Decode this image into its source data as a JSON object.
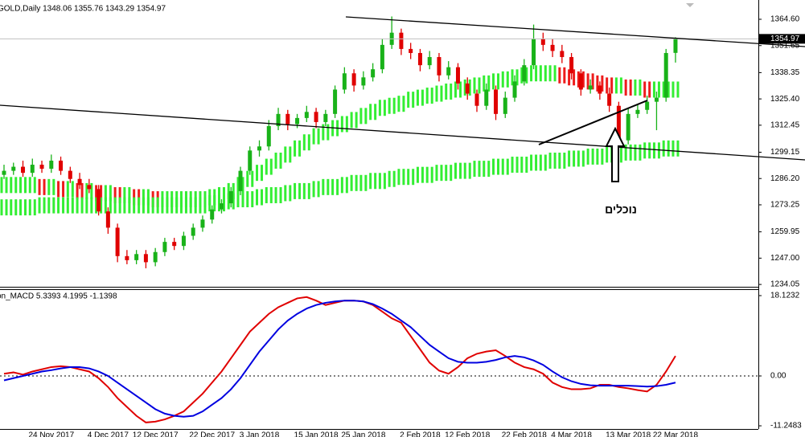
{
  "chart_data": [
    {
      "type": "candlestick",
      "title": "GOLD,Daily  1348.06 1355.76 1343.29 1354.97",
      "annotation": "נוכלים",
      "up_color": "#19b219",
      "down_color": "#e00000",
      "ylim": [
        1232.9,
        1373.7
      ],
      "yticks": [
        {
          "value": 1364.6,
          "label": "1364.60"
        },
        1351.65,
        1338.35,
        {
          "value": 1325.4,
          "label": "1325.40"
        },
        1312.45,
        1299.15,
        {
          "value": 1286.2,
          "label": "1286.20"
        },
        1273.25,
        1259.95,
        {
          "value": 1247,
          "label": "1247.00"
        },
        1234.05
      ],
      "categories": [
        null,
        null,
        null,
        null,
        null,
        "24 Nov 2017",
        null,
        null,
        null,
        null,
        null,
        "4 Dec 2017",
        null,
        null,
        null,
        null,
        "12 Dec 2017",
        null,
        null,
        null,
        null,
        null,
        "22 Dec 2017",
        null,
        null,
        null,
        null,
        "3 Jan 2018",
        null,
        null,
        null,
        null,
        null,
        "15 Jan 2018",
        null,
        null,
        null,
        null,
        "25 Jan 2018",
        null,
        null,
        null,
        null,
        null,
        "2 Feb 2018",
        null,
        null,
        null,
        null,
        "12 Feb 2018",
        null,
        null,
        null,
        null,
        null,
        "22 Feb 2018",
        null,
        null,
        null,
        null,
        "4 Mar 2018",
        null,
        null,
        null,
        null,
        null,
        "13 Mar 2018",
        null,
        null,
        null,
        null,
        "22 Mar 2018"
      ],
      "candles": [
        [
          1288,
          1293,
          1286,
          1290
        ],
        [
          1290,
          1294,
          1288,
          1292
        ],
        [
          1292,
          1295,
          1287,
          1289
        ],
        [
          1289,
          1296,
          1287,
          1293
        ],
        [
          1293,
          1295,
          1289,
          1291
        ],
        [
          1291,
          1298,
          1289,
          1295
        ],
        [
          1295,
          1297,
          1288,
          1290
        ],
        [
          1290,
          1292,
          1284,
          1286
        ],
        [
          1286,
          1289,
          1281,
          1283
        ],
        [
          1283,
          1286,
          1279,
          1281
        ],
        [
          1281,
          1283,
          1268,
          1270
        ],
        [
          1270,
          1272,
          1259,
          1262
        ],
        [
          1262,
          1264,
          1245,
          1248
        ],
        [
          1248,
          1251,
          1244,
          1246
        ],
        [
          1246,
          1251,
          1244,
          1249
        ],
        [
          1249,
          1251,
          1242,
          1245
        ],
        [
          1245,
          1252,
          1243,
          1250
        ],
        [
          1250,
          1257,
          1248,
          1255
        ],
        [
          1255,
          1257,
          1251,
          1253
        ],
        [
          1253,
          1260,
          1251,
          1258
        ],
        [
          1258,
          1264,
          1256,
          1262
        ],
        [
          1262,
          1268,
          1260,
          1266
        ],
        [
          1266,
          1273,
          1264,
          1271
        ],
        [
          1271,
          1276,
          1269,
          1274
        ],
        [
          1274,
          1282,
          1272,
          1280
        ],
        [
          1280,
          1292,
          1278,
          1290
        ],
        [
          1290,
          1302,
          1288,
          1300
        ],
        [
          1300,
          1305,
          1297,
          1302
        ],
        [
          1302,
          1315,
          1300,
          1312
        ],
        [
          1312,
          1321,
          1310,
          1318
        ],
        [
          1318,
          1320,
          1310,
          1313
        ],
        [
          1313,
          1318,
          1311,
          1316
        ],
        [
          1316,
          1322,
          1314,
          1319
        ],
        [
          1319,
          1321,
          1311,
          1314
        ],
        [
          1314,
          1320,
          1312,
          1318
        ],
        [
          1318,
          1332,
          1316,
          1330
        ],
        [
          1330,
          1341,
          1328,
          1338
        ],
        [
          1338,
          1340,
          1329,
          1332
        ],
        [
          1332,
          1339,
          1330,
          1336
        ],
        [
          1336,
          1343,
          1334,
          1340
        ],
        [
          1340,
          1355,
          1338,
          1352
        ],
        [
          1352,
          1366,
          1350,
          1358
        ],
        [
          1358,
          1360,
          1347,
          1350
        ],
        [
          1350,
          1353,
          1345,
          1348
        ],
        [
          1348,
          1350,
          1339,
          1342
        ],
        [
          1342,
          1349,
          1340,
          1346
        ],
        [
          1346,
          1348,
          1334,
          1337
        ],
        [
          1337,
          1344,
          1335,
          1341
        ],
        [
          1341,
          1343,
          1330,
          1333
        ],
        [
          1333,
          1336,
          1325,
          1328
        ],
        [
          1328,
          1330,
          1319,
          1322
        ],
        [
          1322,
          1333,
          1320,
          1330
        ],
        [
          1330,
          1332,
          1315,
          1318
        ],
        [
          1318,
          1329,
          1316,
          1326
        ],
        [
          1326,
          1337,
          1324,
          1334
        ],
        [
          1334,
          1345,
          1332,
          1342
        ],
        [
          1342,
          1362,
          1340,
          1355
        ],
        [
          1355,
          1358,
          1349,
          1352
        ],
        [
          1352,
          1355,
          1346,
          1349
        ],
        [
          1349,
          1352,
          1343,
          1346
        ],
        [
          1346,
          1348,
          1335,
          1338
        ],
        [
          1338,
          1340,
          1327,
          1330
        ],
        [
          1330,
          1335,
          1328,
          1332
        ],
        [
          1332,
          1334,
          1325,
          1328
        ],
        [
          1328,
          1331,
          1319,
          1322
        ],
        [
          1322,
          1324,
          1302,
          1305
        ],
        [
          1305,
          1321,
          1303,
          1318
        ],
        [
          1318,
          1323,
          1316,
          1320
        ],
        [
          1320,
          1327,
          1318,
          1324
        ],
        [
          1324,
          1329,
          1310,
          1326
        ],
        [
          1326,
          1350,
          1324,
          1348
        ],
        [
          1348.06,
          1355.76,
          1343.29,
          1354.97
        ]
      ],
      "bands": [
        {
          "up_color": "#33ee33",
          "down_color": "#ee1c1c",
          "values": [
            1283,
            1283,
            1283,
            1283,
            1282,
            1282,
            1281,
            1281,
            1280,
            1280,
            1279,
            1279,
            1278,
            1278,
            1277,
            1277,
            1276,
            1276,
            1276,
            1276,
            1276,
            1276,
            1277,
            1278,
            1280,
            1283,
            1286,
            1289,
            1292,
            1295,
            1298,
            1301,
            1304,
            1307,
            1309,
            1311,
            1313,
            1315,
            1317,
            1319,
            1321,
            1322,
            1323,
            1325,
            1326,
            1327,
            1328,
            1329,
            1330,
            1331,
            1332,
            1333,
            1334,
            1335,
            1336,
            1337,
            1338,
            1338,
            1338,
            1337,
            1336,
            1335,
            1334,
            1333,
            1332,
            1332,
            1331,
            1331,
            1330,
            1330,
            1330,
            1330
          ]
        },
        {
          "up_color": "#33ee33",
          "down_color": "#33ee33",
          "values": [
            1272,
            1272,
            1272,
            1272,
            1273,
            1273,
            1273,
            1273,
            1273,
            1273,
            1273,
            1273,
            1273,
            1273,
            1273,
            1273,
            1273,
            1273,
            1273,
            1273,
            1273,
            1273,
            1274,
            1274,
            1275,
            1276,
            1276,
            1277,
            1278,
            1278,
            1279,
            1280,
            1280,
            1281,
            1282,
            1282,
            1283,
            1284,
            1284,
            1285,
            1285,
            1286,
            1287,
            1287,
            1288,
            1288,
            1289,
            1289,
            1290,
            1290,
            1291,
            1291,
            1292,
            1292,
            1293,
            1293,
            1294,
            1294,
            1295,
            1295,
            1296,
            1296,
            1297,
            1297,
            1298,
            1298,
            1299,
            1299,
            1300,
            1300,
            1301,
            1301
          ]
        }
      ]
    },
    {
      "type": "line",
      "title": "on_MACD 5.3393 4.1995 -1.1398",
      "ylim": [
        -13.05,
        19.39
      ],
      "yticks": [
        18.1232,
        {
          "value": 0,
          "label": "0.00"
        },
        -11.2483
      ],
      "series": [
        {
          "color": "#e00000",
          "values": [
            0.5,
            0.8,
            0.3,
            1,
            1.5,
            2,
            2.2,
            2,
            1.5,
            1,
            -0.5,
            -2.5,
            -5,
            -7,
            -9,
            -10.5,
            -10.3,
            -9.8,
            -9,
            -8,
            -6,
            -4,
            -1.5,
            1,
            4,
            7,
            10,
            12,
            14,
            15.5,
            16.5,
            17.5,
            17.8,
            17,
            16,
            16.5,
            17,
            17,
            16.8,
            16,
            14.5,
            13,
            12,
            9,
            6,
            3,
            1.2,
            0.5,
            2,
            4,
            5,
            5.5,
            5.8,
            4.5,
            3,
            2,
            1.5,
            0.5,
            -1.5,
            -2.5,
            -3,
            -3,
            -2.8,
            -2,
            -2,
            -2.5,
            -2.8,
            -3.2,
            -3.5,
            -2,
            1,
            4.5
          ]
        },
        {
          "color": "#0000e0",
          "values": [
            -1,
            -0.5,
            0,
            0.5,
            1,
            1.3,
            1.7,
            2,
            2,
            1.7,
            1,
            0,
            -1.5,
            -3,
            -4.5,
            -6,
            -7.5,
            -8.5,
            -9,
            -9.2,
            -9,
            -8,
            -6.5,
            -5,
            -3,
            -0.5,
            2.5,
            5.5,
            8,
            10.5,
            12.5,
            14,
            15.2,
            16,
            16.5,
            16.8,
            17,
            17,
            16.8,
            16.2,
            15.2,
            14,
            12.5,
            11,
            9,
            7,
            5.5,
            4,
            3.2,
            3,
            3,
            3.2,
            3.6,
            4.2,
            4.5,
            4.2,
            3.5,
            2.5,
            1,
            -0.3,
            -1.2,
            -1.8,
            -2.1,
            -2.2,
            -2.2,
            -2.2,
            -2.2,
            -2.3,
            -2.4,
            -2.3,
            -2,
            -1.5
          ]
        }
      ]
    }
  ]
}
